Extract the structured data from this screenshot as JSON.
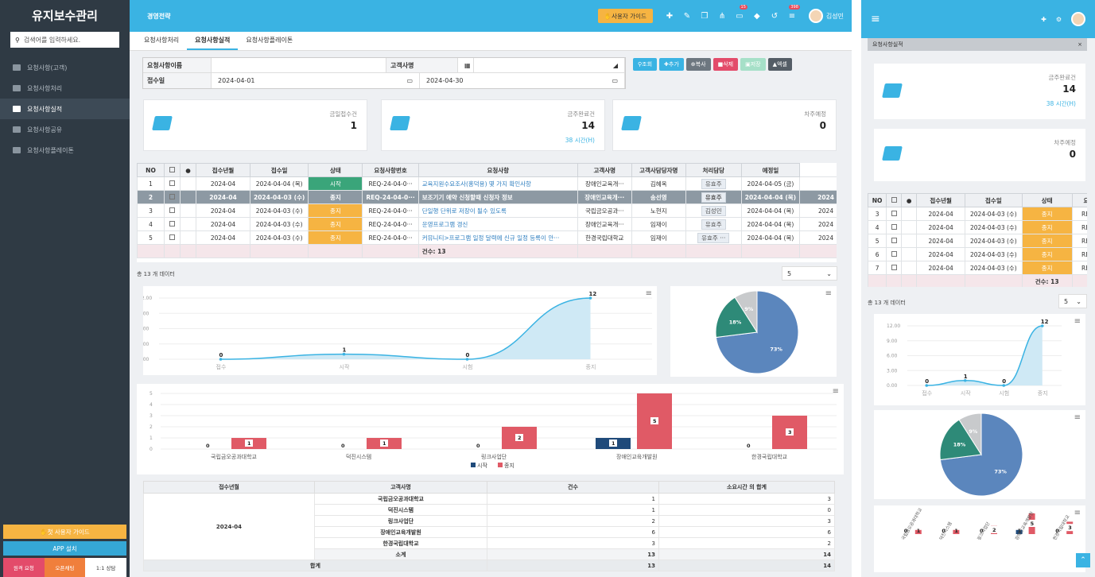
{
  "sidebar": {
    "title": "유지보수관리",
    "search_placeholder": "검색어를 입력하세요.",
    "items": [
      {
        "label": "요청사항(고객)"
      },
      {
        "label": "요청사항처리"
      },
      {
        "label": "요청사항실적"
      },
      {
        "label": "요청사항공유"
      },
      {
        "label": "요청사항플레이톤"
      }
    ],
    "guide": "첫 사용자 가이드",
    "app": "APP 설치",
    "bottom": [
      "원격 요청",
      "오픈채팅",
      "1:1 상담"
    ]
  },
  "topbar": {
    "title": "경영전략",
    "guide": "사용자 가이드",
    "badges": [
      "15",
      "398"
    ],
    "user": "김성민"
  },
  "tabs": [
    "요청사항처리",
    "요청사항실적",
    "요청사항플레이톤"
  ],
  "filter": {
    "req_name_label": "요청사항이름",
    "customer_label": "고객사명",
    "date_label": "접수일",
    "date_from": "2024-04-01",
    "date_to": "2024-04-30"
  },
  "actions": [
    "조회",
    "추가",
    "복사",
    "삭제",
    "저장",
    "엑셀"
  ],
  "cards": [
    {
      "label": "금일접수건",
      "value": "1"
    },
    {
      "label": "금주완료건",
      "value": "14",
      "sub": "38 시간(H)"
    },
    {
      "label": "차주예정",
      "value": "0"
    }
  ],
  "grid": {
    "headers": [
      "NO",
      "",
      "",
      "접수년월",
      "접수일",
      "상태",
      "요청사항번호",
      "요청사항",
      "고객사명",
      "고객사담당자명",
      "처리담당",
      "예정일"
    ],
    "rows": [
      {
        "no": "1",
        "ym": "2024-04",
        "date": "2024-04-04 (목)",
        "status": "시작",
        "num": "REQ-24-04-0···",
        "title": "교육지원수요조사(홍덕용) 몇 가지 확인사항",
        "cust": "장애인교육개···",
        "contact": "김혜옥",
        "mgr": "유효주",
        "due": "2024-04-05 (금)",
        "extra": ""
      },
      {
        "no": "2",
        "ym": "2024-04",
        "date": "2024-04-03 (수)",
        "status": "종지",
        "num": "REQ-24-04-0···",
        "title": "보조기기 예약 신청할때 신청자 정보",
        "cust": "장애인교육개···",
        "contact": "송선영",
        "mgr": "유효주",
        "due": "2024-04-04 (목)",
        "extra": "2024"
      },
      {
        "no": "3",
        "ym": "2024-04",
        "date": "2024-04-03 (수)",
        "status": "종지",
        "num": "REQ-24-04-0···",
        "title": "단일행 단위로 저장이 될수 있도록",
        "cust": "국립금오공과···",
        "contact": "노현지",
        "mgr": "김성민",
        "due": "2024-04-04 (목)",
        "extra": "2024"
      },
      {
        "no": "4",
        "ym": "2024-04",
        "date": "2024-04-03 (수)",
        "status": "종지",
        "num": "REQ-24-04-0···",
        "title": "운영프로그램 갱신",
        "cust": "장애인교육개···",
        "contact": "임재이",
        "mgr": "유효주",
        "due": "2024-04-04 (목)",
        "extra": "2024"
      },
      {
        "no": "5",
        "ym": "2024-04",
        "date": "2024-04-03 (수)",
        "status": "종지",
        "num": "REQ-24-04-0···",
        "title": "커뮤니티>프로그램 일정 달력에 신규 일정 등록이 안···",
        "cust": "한경국립대학교",
        "contact": "임재이",
        "mgr": "유효주 ···",
        "due": "2024-04-04 (목)",
        "extra": "2024"
      }
    ],
    "total": "건수: 13"
  },
  "count_text": "총 13 개 데이터",
  "page_size": "5",
  "line_chart": {
    "type": "line",
    "categories": [
      "접수",
      "시작",
      "시험",
      "종지"
    ],
    "values": [
      0,
      1,
      0,
      12
    ],
    "ylim": [
      0,
      12
    ],
    "yticks": [
      "12.00",
      "9.00",
      "6.00",
      "3.00",
      "0.00"
    ]
  },
  "pie_chart": {
    "type": "pie",
    "values": [
      73,
      18,
      9
    ],
    "labels": [
      "73%",
      "18%",
      "9%"
    ],
    "colors": [
      "#5b86bd",
      "#2e8a78",
      "#c8cacc"
    ]
  },
  "bar_chart": {
    "type": "bar",
    "categories": [
      "국립금오공과대학교",
      "덕진시스템",
      "링크사업단",
      "장애인교육개발원",
      "한경국립대학교"
    ],
    "series": [
      {
        "name": "시작",
        "values": [
          0,
          0,
          0,
          1,
          0
        ],
        "color": "#1f4a7a"
      },
      {
        "name": "종지",
        "values": [
          1,
          1,
          2,
          5,
          3
        ],
        "color": "#e05a66"
      }
    ],
    "yticks": [
      "5",
      "4",
      "3",
      "2",
      "1",
      "0"
    ]
  },
  "summary": {
    "headers": [
      "접수년월",
      "고객사명",
      "건수",
      "소요시간 의 합계"
    ],
    "ym": "2024-04",
    "rows": [
      [
        "국립금오공과대학교",
        "1",
        "3"
      ],
      [
        "덕진시스템",
        "1",
        "0"
      ],
      [
        "링크사업단",
        "2",
        "3"
      ],
      [
        "장애인교육개발원",
        "6",
        "6"
      ],
      [
        "한경국립대학교",
        "3",
        "2"
      ]
    ],
    "subtotal": [
      "소계",
      "13",
      "14"
    ],
    "total": [
      "합계",
      "13",
      "14"
    ]
  },
  "right": {
    "tab": "요청사항실적",
    "card1": {
      "label": "금주완료건",
      "value": "14",
      "sub": "38 시간(H)"
    },
    "card2": {
      "label": "차주예정",
      "value": "0"
    },
    "rows": [
      {
        "no": "3",
        "ym": "2024-04",
        "date": "2024-04-03 (수)",
        "status": "종지",
        "num": "REQ-"
      },
      {
        "no": "4",
        "ym": "2024-04",
        "date": "2024-04-03 (수)",
        "status": "종지",
        "num": "REQ-"
      },
      {
        "no": "5",
        "ym": "2024-04",
        "date": "2024-04-03 (수)",
        "status": "종지",
        "num": "REQ-"
      },
      {
        "no": "6",
        "ym": "2024-04",
        "date": "2024-04-03 (수)",
        "status": "종지",
        "num": "REQ-"
      },
      {
        "no": "7",
        "ym": "2024-04",
        "date": "2024-04-03 (수)",
        "status": "종지",
        "num": "REQ-"
      }
    ],
    "total": "건수: 13",
    "count_text": "총 13 개 데이터",
    "page_size": "5",
    "headers": [
      "NO",
      "",
      "",
      "접수년월",
      "접수일",
      "상태",
      "요청"
    ]
  }
}
